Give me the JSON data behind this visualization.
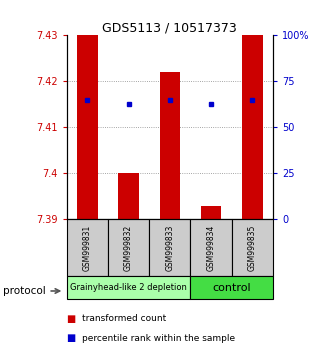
{
  "title": "GDS5113 / 10517373",
  "samples": [
    "GSM999831",
    "GSM999832",
    "GSM999833",
    "GSM999834",
    "GSM999835"
  ],
  "ylim_left": [
    7.39,
    7.43
  ],
  "ylim_right": [
    0,
    100
  ],
  "yticks_left": [
    7.39,
    7.4,
    7.41,
    7.42,
    7.43
  ],
  "yticks_right": [
    0,
    25,
    50,
    75,
    100
  ],
  "bar_bottom": 7.39,
  "bar_tops": [
    7.43,
    7.4,
    7.422,
    7.393,
    7.43
  ],
  "blue_dot_y": [
    7.416,
    7.415,
    7.416,
    7.415,
    7.416
  ],
  "groups": [
    {
      "label": "Grainyhead-like 2 depletion",
      "samples": [
        0,
        1,
        2
      ],
      "color": "#aaffaa",
      "text_size": 6
    },
    {
      "label": "control",
      "samples": [
        3,
        4
      ],
      "color": "#44dd44",
      "text_size": 8
    }
  ],
  "bar_color": "#cc0000",
  "dot_color": "#0000cc",
  "bar_width": 0.5,
  "grid_color": "#888888",
  "bg_color": "#ffffff",
  "tick_label_color_left": "#cc0000",
  "tick_label_color_right": "#0000cc",
  "sample_bg_color": "#cccccc",
  "protocol_label": "protocol",
  "legend_items": [
    {
      "color": "#cc0000",
      "label": "transformed count"
    },
    {
      "color": "#0000cc",
      "label": "percentile rank within the sample"
    }
  ]
}
